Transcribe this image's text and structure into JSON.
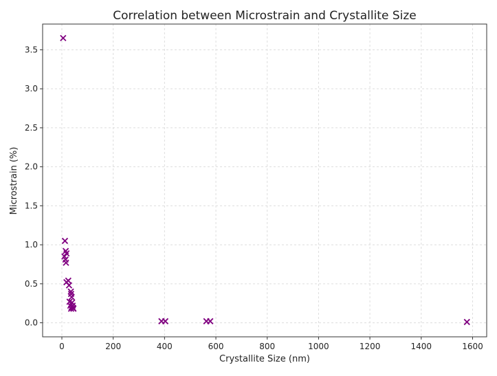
{
  "chart_data": {
    "type": "scatter",
    "title": "Correlation between Microstrain and Crystallite Size",
    "xlabel": "Crystallite Size (nm)",
    "ylabel": "Microstrain (%)",
    "xlim": [
      -75,
      1655
    ],
    "ylim": [
      -0.18,
      3.83
    ],
    "xticks": [
      0,
      200,
      400,
      600,
      800,
      1000,
      1200,
      1400,
      1600
    ],
    "yticks": [
      0.0,
      0.5,
      1.0,
      1.5,
      2.0,
      2.5,
      3.0,
      3.5
    ],
    "xtick_labels": [
      "0",
      "200",
      "400",
      "600",
      "800",
      "1000",
      "1200",
      "1400",
      "1600"
    ],
    "ytick_labels": [
      "0.0",
      "0.5",
      "1.0",
      "1.5",
      "2.0",
      "2.5",
      "3.0",
      "3.5"
    ],
    "grid": true,
    "marker": "x",
    "color": "#800080",
    "points": [
      [
        5,
        3.65
      ],
      [
        12,
        1.05
      ],
      [
        15,
        0.92
      ],
      [
        10,
        0.85
      ],
      [
        18,
        0.89
      ],
      [
        14,
        0.81
      ],
      [
        16,
        0.77
      ],
      [
        18,
        0.52
      ],
      [
        25,
        0.54
      ],
      [
        28,
        0.48
      ],
      [
        35,
        0.4
      ],
      [
        36,
        0.37
      ],
      [
        38,
        0.33
      ],
      [
        30,
        0.27
      ],
      [
        40,
        0.26
      ],
      [
        42,
        0.22
      ],
      [
        33,
        0.22
      ],
      [
        38,
        0.2
      ],
      [
        44,
        0.19
      ],
      [
        36,
        0.18
      ],
      [
        45,
        0.18
      ],
      [
        388,
        0.02
      ],
      [
        403,
        0.02
      ],
      [
        563,
        0.02
      ],
      [
        578,
        0.02
      ],
      [
        1578,
        0.01
      ]
    ]
  }
}
